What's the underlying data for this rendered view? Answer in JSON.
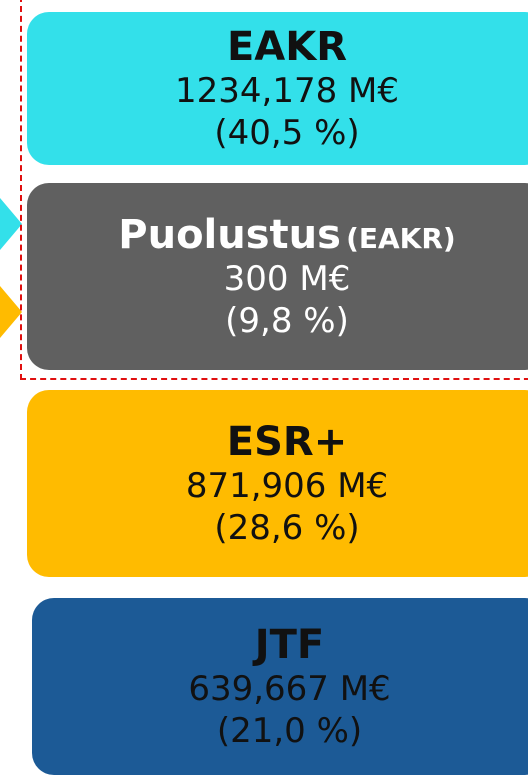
{
  "boxes": [
    {
      "title": "EAKR",
      "amount": "1234,178 M€",
      "share": "(40,5 %)"
    },
    {
      "title": "Puolustus",
      "qualifier": "(EAKR)",
      "amount": "300 M€",
      "share": "(9,8 %)"
    },
    {
      "title": "ESR+",
      "amount": "871,906 M€",
      "share": "(28,6 %)"
    },
    {
      "title": "JTF",
      "amount": "639,667 M€",
      "share": "(21,0 %)"
    }
  ]
}
